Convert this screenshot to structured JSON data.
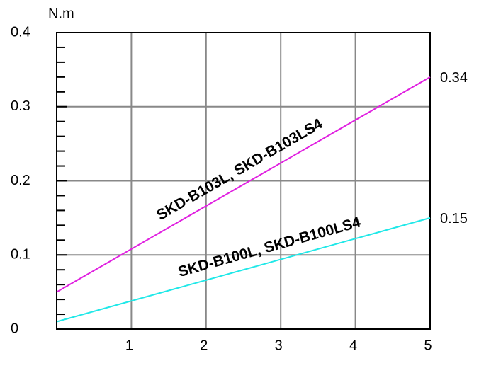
{
  "chart_data": {
    "type": "line",
    "y_unit": "N.m",
    "x": [
      0,
      5
    ],
    "series": [
      {
        "name": "SKD-B103L, SKD-B103LS4",
        "color": "#e020e0",
        "values": [
          0.05,
          0.34
        ]
      },
      {
        "name": "SKD-B100L, SKD-B100LS4",
        "color": "#20e8e8",
        "values": [
          0.01,
          0.15
        ]
      }
    ],
    "xlim": [
      0,
      5
    ],
    "xticks": [
      1,
      2,
      3,
      4,
      5
    ],
    "ylim": [
      0,
      0.4
    ],
    "yticks": [
      0,
      0.1,
      0.2,
      0.3,
      0.4
    ],
    "yminorticks": [
      0.02,
      0.04,
      0.06,
      0.08,
      0.12,
      0.14,
      0.16,
      0.18,
      0.22,
      0.24,
      0.26,
      0.28,
      0.32,
      0.34,
      0.36,
      0.38
    ],
    "grid": true
  }
}
